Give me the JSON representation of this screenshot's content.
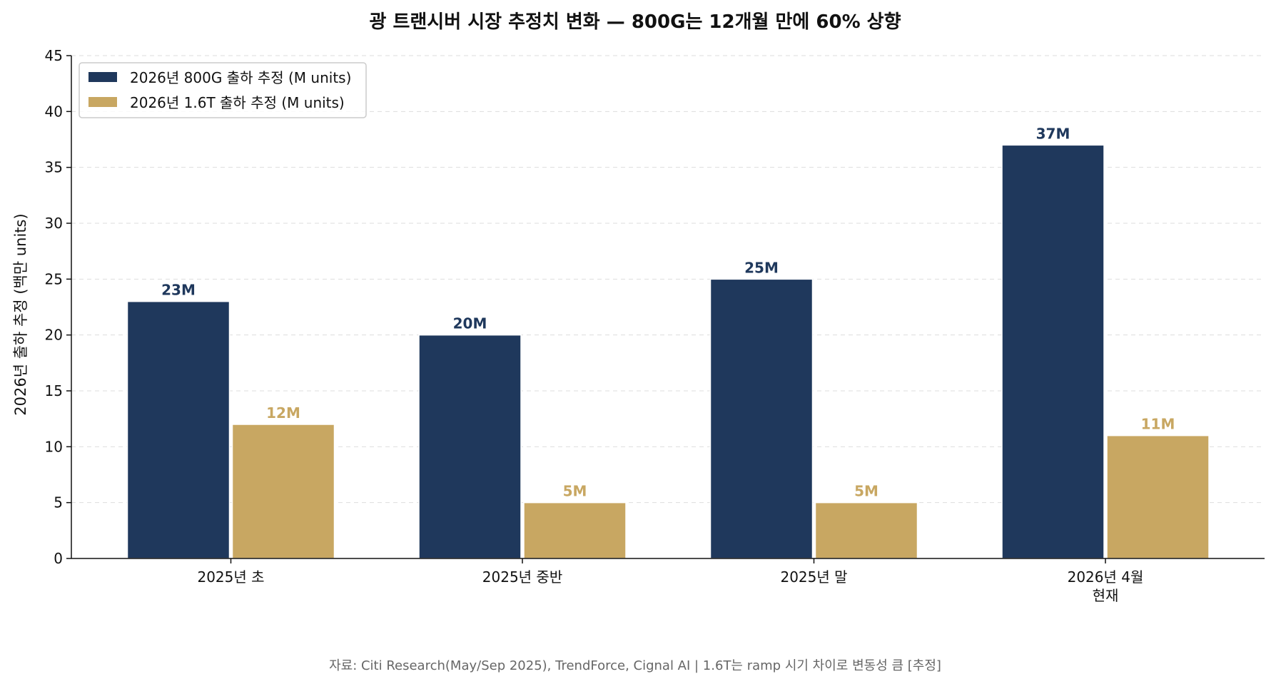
{
  "chart_data": {
    "type": "bar",
    "title": "광 트랜시버 시장 추정치 변화 — 800G는 12개월 만에 60% 상향",
    "xlabel": "",
    "ylabel": "2026년 출하 추정 (백만 units)",
    "categories": [
      [
        "2025년 초"
      ],
      [
        "2025년 중반"
      ],
      [
        "2025년 말"
      ],
      [
        "2026년 4월",
        "현재"
      ]
    ],
    "series": [
      {
        "name": "2026년 800G 출하 추정 (M units)",
        "color": "#1f385c",
        "label_color": "#1f385c",
        "values": [
          23,
          20,
          25,
          37
        ],
        "labels": [
          "23M",
          "20M",
          "25M",
          "37M"
        ]
      },
      {
        "name": "2026년 1.6T 출하 추정 (M units)",
        "color": "#c8a762",
        "label_color": "#c8a762",
        "values": [
          12,
          5,
          5,
          11
        ],
        "labels": [
          "12M",
          "5M",
          "5M",
          "11M"
        ]
      }
    ],
    "ylim": [
      0,
      45
    ],
    "yticks": [
      0,
      5,
      10,
      15,
      20,
      25,
      30,
      35,
      40,
      45
    ],
    "grid": "horizontal-dashed",
    "legend_position": "top-left"
  },
  "source_note": "자료: Citi Research(May/Sep 2025), TrendForce, Cignal AI | 1.6T는 ramp 시기 차이로 변동성 큼 [추정]"
}
